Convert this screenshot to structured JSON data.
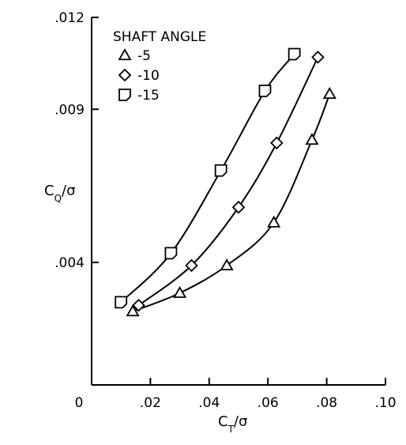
{
  "chart_data": {
    "type": "scatter",
    "title": "",
    "xlabel_main": "C",
    "xlabel_sub": "T",
    "xlabel_tail": "/σ",
    "ylabel_main": "C",
    "ylabel_sub": "Q",
    "ylabel_tail": "/σ",
    "xlim": [
      0,
      0.1
    ],
    "ylim": [
      0,
      0.012
    ],
    "x_ticks": [
      {
        "value": 0,
        "label": "0"
      },
      {
        "value": 0.02,
        "label": ".02"
      },
      {
        "value": 0.04,
        "label": ".04"
      },
      {
        "value": 0.06,
        "label": ".06"
      },
      {
        "value": 0.08,
        "label": ".08"
      },
      {
        "value": 0.1,
        "label": ".10"
      }
    ],
    "y_ticks": [
      {
        "value": 0.004,
        "label": ".004"
      },
      {
        "value": 0.009,
        "label": ".009"
      },
      {
        "value": 0.012,
        "label": ".012"
      }
    ],
    "legend": {
      "title": "SHAFT ANGLE",
      "position": "top-left"
    },
    "series": [
      {
        "name": "-5",
        "marker": "triangle",
        "points": [
          {
            "x": 0.014,
            "y": 0.0024
          },
          {
            "x": 0.03,
            "y": 0.003
          },
          {
            "x": 0.046,
            "y": 0.0039
          },
          {
            "x": 0.062,
            "y": 0.0053
          },
          {
            "x": 0.075,
            "y": 0.008
          },
          {
            "x": 0.081,
            "y": 0.0095
          }
        ]
      },
      {
        "name": "-10",
        "marker": "diamond",
        "points": [
          {
            "x": 0.016,
            "y": 0.0026
          },
          {
            "x": 0.034,
            "y": 0.0039
          },
          {
            "x": 0.05,
            "y": 0.0058
          },
          {
            "x": 0.063,
            "y": 0.0079
          },
          {
            "x": 0.077,
            "y": 0.0107
          }
        ]
      },
      {
        "name": "-15",
        "marker": "square-d",
        "points": [
          {
            "x": 0.01,
            "y": 0.0027
          },
          {
            "x": 0.027,
            "y": 0.0043
          },
          {
            "x": 0.044,
            "y": 0.007
          },
          {
            "x": 0.059,
            "y": 0.0096
          },
          {
            "x": 0.069,
            "y": 0.0108
          }
        ]
      }
    ]
  }
}
